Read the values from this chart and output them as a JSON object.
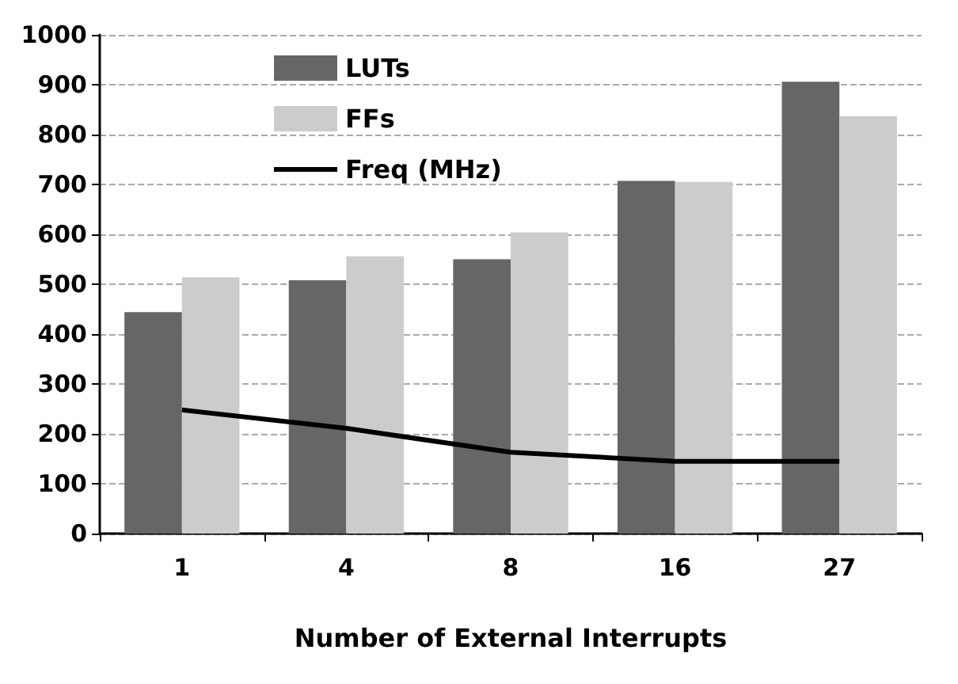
{
  "chart_data": {
    "type": "bar",
    "xlabel": "Number of External Interrupts",
    "categories": [
      "1",
      "4",
      "8",
      "16",
      "27"
    ],
    "series": [
      {
        "name": "LUTs",
        "color": "#666666",
        "values": [
          444,
          508,
          550,
          707,
          906
        ]
      },
      {
        "name": "FFs",
        "color": "#cccccc",
        "values": [
          514,
          556,
          604,
          705,
          837
        ]
      },
      {
        "name": "Freq (MHz)",
        "type": "line",
        "color": "#000000",
        "values": [
          248,
          211,
          163,
          145,
          145
        ]
      }
    ],
    "ylim": [
      0,
      1000
    ],
    "yticks": [
      0,
      100,
      200,
      300,
      400,
      500,
      600,
      700,
      800,
      900,
      1000
    ],
    "grid": "y",
    "legend": "top left",
    "marker": "none"
  }
}
